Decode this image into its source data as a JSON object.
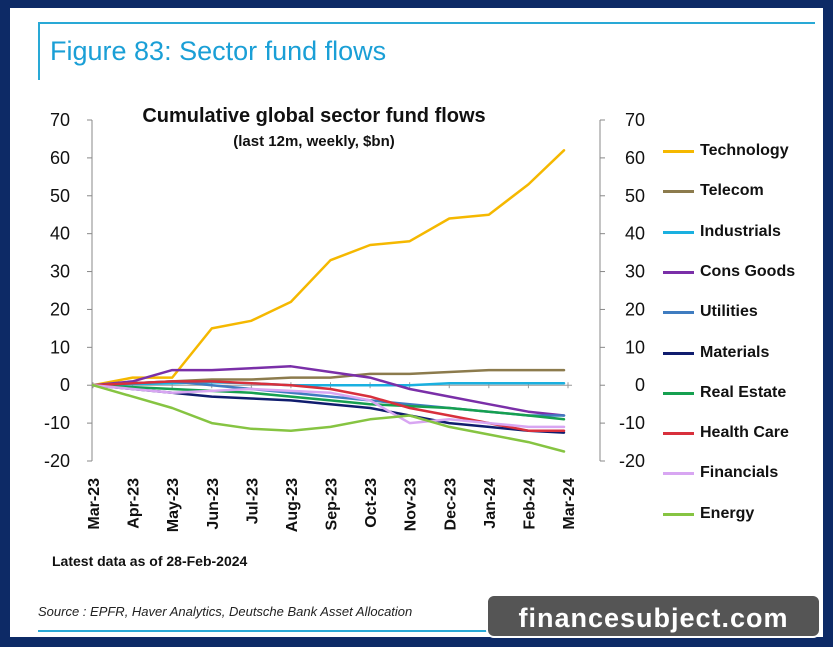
{
  "figure": {
    "title": "Figure 83: Sector fund flows",
    "source": "Source : EPFR, Haver Analytics, Deutsche Bank Asset Allocation",
    "latest_note": "Latest data as of 28-Feb-2024",
    "watermark": "financesubject.com",
    "accent_color": "#1a9fd6",
    "frame_color": "#0d2a66"
  },
  "chart_data": {
    "type": "line",
    "title": "Cumulative global sector fund flows",
    "subtitle": "(last 12m, weekly, $bn)",
    "xlabel": "",
    "ylabel": "",
    "x_tick_labels": [
      "Mar-23",
      "Apr-23",
      "May-23",
      "Jun-23",
      "Jul-23",
      "Aug-23",
      "Sep-23",
      "Oct-23",
      "Nov-23",
      "Dec-23",
      "Jan-24",
      "Feb-24",
      "Mar-24"
    ],
    "y_ticks": [
      70,
      60,
      50,
      40,
      30,
      20,
      10,
      0,
      -10,
      -20
    ],
    "ylim": [
      -20,
      70
    ],
    "secondary_y_axis": true,
    "grid": false,
    "legend_position": "right",
    "x_months": [
      0,
      1,
      2,
      3,
      4,
      5,
      6,
      7,
      8,
      9,
      10,
      11,
      11.9
    ],
    "series": [
      {
        "name": "Technology",
        "color": "#f5b800",
        "values": [
          0,
          2,
          2,
          15,
          17,
          22,
          33,
          37,
          38,
          44,
          45,
          53,
          62
        ]
      },
      {
        "name": "Telecom",
        "color": "#8c7b4d",
        "values": [
          0,
          0.5,
          1,
          1.5,
          1.5,
          2,
          2,
          3,
          3,
          3.5,
          4,
          4,
          4
        ]
      },
      {
        "name": "Industrials",
        "color": "#1ab0e0",
        "values": [
          0,
          0.3,
          0.5,
          0.8,
          0.5,
          0,
          0,
          0,
          0,
          0.5,
          0.5,
          0.5,
          0.5
        ]
      },
      {
        "name": "Cons Goods",
        "color": "#7a2fa8",
        "values": [
          0,
          1,
          4,
          4,
          4.5,
          5,
          3.5,
          2,
          -1,
          -3,
          -5,
          -7,
          -8
        ]
      },
      {
        "name": "Utilities",
        "color": "#3f7cc0",
        "values": [
          0,
          0.5,
          1,
          0,
          -1,
          -2,
          -3,
          -4,
          -5,
          -6,
          -7,
          -8,
          -8
        ]
      },
      {
        "name": "Materials",
        "color": "#101d6e",
        "values": [
          0,
          -1,
          -2,
          -3,
          -3.5,
          -4,
          -5,
          -6,
          -8,
          -10,
          -11,
          -12,
          -12.5
        ]
      },
      {
        "name": "Real Estate",
        "color": "#16a050",
        "values": [
          0,
          -0.5,
          -1,
          -1.5,
          -2,
          -3,
          -4,
          -5,
          -5.5,
          -6,
          -7,
          -8,
          -9
        ]
      },
      {
        "name": "Health Care",
        "color": "#d8303c",
        "values": [
          0,
          0.5,
          1,
          1,
          0.5,
          0,
          -1,
          -3,
          -6,
          -8,
          -10,
          -12,
          -12
        ]
      },
      {
        "name": "Financials",
        "color": "#d8a6f2",
        "values": [
          0,
          -1,
          -2,
          -1.5,
          -1,
          -1.5,
          -2,
          -4,
          -10,
          -9,
          -10,
          -11,
          -11
        ]
      },
      {
        "name": "Energy",
        "color": "#86c442",
        "values": [
          0,
          -3,
          -6,
          -10,
          -11.5,
          -12,
          -11,
          -9,
          -8,
          -11,
          -13,
          -15,
          -17.5
        ]
      }
    ]
  }
}
